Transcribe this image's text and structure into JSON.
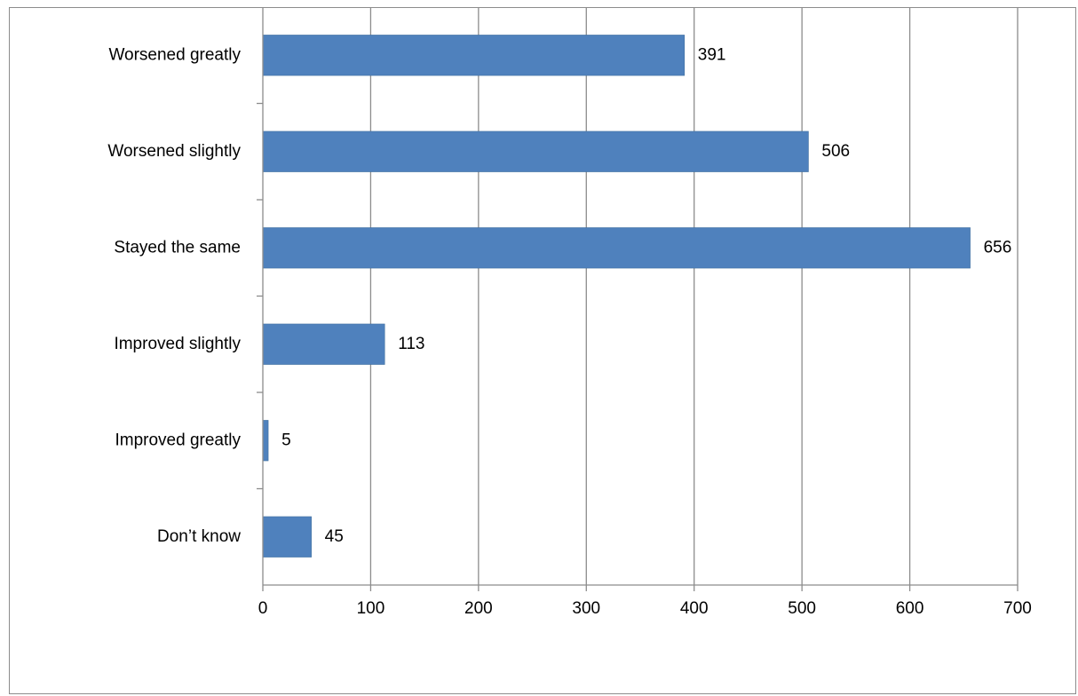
{
  "chart_data": {
    "type": "bar",
    "orientation": "horizontal",
    "title": "",
    "xlabel": "",
    "ylabel": "",
    "categories": [
      "Worsened greatly",
      "Worsened slightly",
      "Stayed the same",
      "Improved slightly",
      "Improved greatly",
      "Don’t know"
    ],
    "values": [
      391,
      506,
      656,
      113,
      5,
      45
    ],
    "data_labels": [
      "391",
      "506",
      "656",
      "113",
      "5",
      "45"
    ],
    "xlim": [
      0,
      700
    ],
    "x_ticks": [
      0,
      100,
      200,
      300,
      400,
      500,
      600,
      700
    ],
    "x_tick_labels": [
      "0",
      "100",
      "200",
      "300",
      "400",
      "500",
      "600",
      "700"
    ],
    "grid": "vertical",
    "legend": "none",
    "colors": {
      "bar": "#4F81BD",
      "bar_edge": "#41709F",
      "gridline": "#8C8C8C",
      "axis": "#8C8C8C",
      "text": "#000000"
    }
  }
}
